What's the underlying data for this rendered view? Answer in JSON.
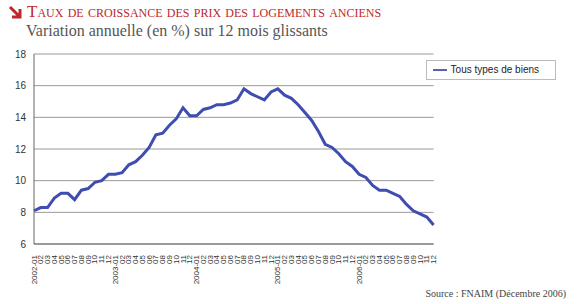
{
  "chart_data": {
    "type": "line",
    "title": "Taux de croissance des prix des logements anciens",
    "subtitle": "Variation annuelle (en %) sur 12 mois glissants",
    "source": "Source : FNAIM (Décembre 2006)",
    "categories": [
      "2002-01",
      "02",
      "03",
      "04",
      "05",
      "06",
      "07",
      "08",
      "09",
      "10",
      "11",
      "12",
      "2003-01",
      "02",
      "03",
      "04",
      "05",
      "06",
      "07",
      "08",
      "09",
      "10",
      "11",
      "12",
      "2004-01",
      "02",
      "03",
      "04",
      "05",
      "06",
      "07",
      "08",
      "09",
      "10",
      "11",
      "12",
      "2005-01",
      "02",
      "03",
      "04",
      "05",
      "06",
      "07",
      "08",
      "09",
      "10",
      "11",
      "12",
      "2006-01",
      "02",
      "03",
      "04",
      "05",
      "06",
      "07",
      "08",
      "09",
      "10",
      "11",
      "12"
    ],
    "series": [
      {
        "name": "Tous types de biens",
        "color": "#3f4db0",
        "values": [
          8.1,
          8.3,
          8.3,
          8.9,
          9.2,
          9.2,
          8.8,
          9.4,
          9.5,
          9.9,
          10.0,
          10.4,
          10.4,
          10.5,
          11.0,
          11.2,
          11.6,
          12.1,
          12.9,
          13.0,
          13.5,
          13.9,
          14.6,
          14.1,
          14.1,
          14.5,
          14.6,
          14.8,
          14.8,
          14.9,
          15.1,
          15.8,
          15.5,
          15.3,
          15.1,
          15.6,
          15.8,
          15.4,
          15.2,
          14.8,
          14.3,
          13.8,
          13.1,
          12.3,
          12.1,
          11.7,
          11.2,
          10.9,
          10.4,
          10.2,
          9.7,
          9.4,
          9.4,
          9.2,
          9.0,
          8.5,
          8.1,
          7.9,
          7.7,
          7.2
        ]
      }
    ],
    "ylim": [
      6,
      18
    ],
    "yticks": [
      6,
      8,
      10,
      12,
      14,
      16,
      18
    ],
    "grid": true,
    "legend": "top-right"
  }
}
